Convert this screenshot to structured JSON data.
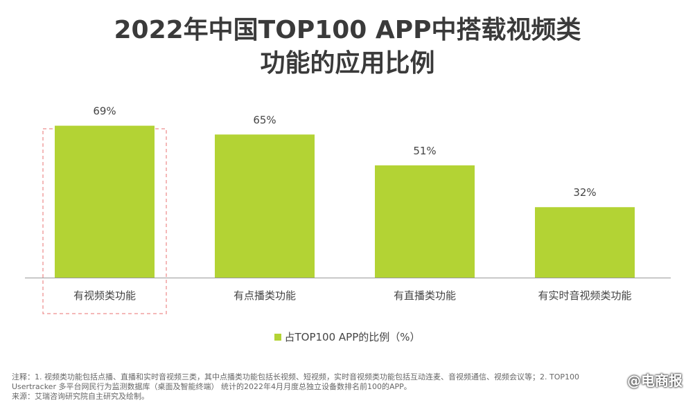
{
  "title_line1": "2022年中国TOP100 APP中搭载视频类",
  "title_line2": "功能的应用比例",
  "legend_label": "占TOP100 APP的比例（%）",
  "notes": [
    "注释：1. 视频类功能包括点播、直播和实时音视频三类，其中点播类功能包括长视频、短视频，实时音视频类功能包括互动连麦、音视频通信、视频会议等；2. TOP100",
    "Usertracker 多平台网民行为监测数据库（桌面及智能终端） 统计的2022年4月月度总独立设备数排名前100的APP。",
    "来源：艾瑞咨询研究院自主研究及绘制。"
  ],
  "watermark": "@电商报",
  "chart_data": {
    "type": "bar",
    "categories": [
      "有视频类功能",
      "有点播类功能",
      "有直播类功能",
      "有实时音视频类功能"
    ],
    "series": [
      {
        "name": "占TOP100 APP的比例（%）",
        "values": [
          69,
          65,
          51,
          32
        ]
      }
    ],
    "data_labels": [
      "69%",
      "65%",
      "51%",
      "32%"
    ],
    "ylim": [
      0,
      100
    ],
    "grid": false,
    "legend_position": "bottom",
    "highlighted_category": "有视频类功能",
    "colors": {
      "bar": "#b3d334",
      "highlight_border": "#f0a0a0",
      "axis": "#999999"
    }
  }
}
